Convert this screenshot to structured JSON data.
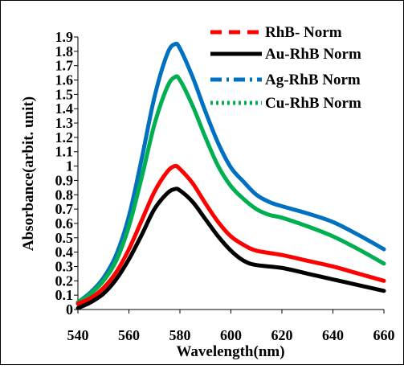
{
  "chart_data": {
    "type": "line",
    "title": "",
    "xlabel": "Wavelength(nm)",
    "ylabel": "Absorbance(arbit. unit)",
    "xlim": [
      540,
      660
    ],
    "ylim": [
      0,
      1.9
    ],
    "xticks": [
      "540",
      "560",
      "580",
      "600",
      "620",
      "640",
      "660"
    ],
    "yticks": [
      "0",
      "0.1",
      "0.2",
      "0.3",
      "0.4",
      "0.5",
      "0.6",
      "0.7",
      "0.8",
      "0.9",
      "1",
      "1.1",
      "1.2",
      "1.3",
      "1.4",
      "1.5",
      "1.6",
      "1.7",
      "1.8",
      "1.9"
    ],
    "grid": false,
    "legend_position": "top-right",
    "series": [
      {
        "name": "RhB- Norm",
        "color": "#ff0000",
        "dash": "long-dash",
        "x": [
          540,
          545,
          550,
          555,
          560,
          565,
          570,
          575,
          578,
          580,
          585,
          590,
          595,
          600,
          605,
          610,
          620,
          630,
          640,
          650,
          660
        ],
        "y": [
          0.04,
          0.08,
          0.15,
          0.26,
          0.42,
          0.62,
          0.82,
          0.96,
          1.0,
          0.98,
          0.88,
          0.74,
          0.61,
          0.51,
          0.45,
          0.41,
          0.38,
          0.34,
          0.3,
          0.25,
          0.2
        ]
      },
      {
        "name": "Au-RhB Norm",
        "color": "#000000",
        "dash": "solid",
        "x": [
          540,
          545,
          550,
          555,
          560,
          565,
          570,
          575,
          578,
          580,
          585,
          590,
          595,
          600,
          605,
          610,
          620,
          630,
          640,
          650,
          660
        ],
        "y": [
          0.01,
          0.05,
          0.11,
          0.21,
          0.35,
          0.52,
          0.7,
          0.81,
          0.84,
          0.83,
          0.75,
          0.63,
          0.51,
          0.41,
          0.34,
          0.31,
          0.29,
          0.25,
          0.21,
          0.17,
          0.13
        ]
      },
      {
        "name": "Ag-RhB Norm",
        "color": "#0070c0",
        "dash": "dash-dot",
        "x": [
          540,
          545,
          550,
          555,
          560,
          565,
          570,
          575,
          578,
          580,
          585,
          590,
          595,
          600,
          605,
          610,
          615,
          620,
          630,
          640,
          650,
          660
        ],
        "y": [
          0.05,
          0.12,
          0.22,
          0.38,
          0.65,
          1.05,
          1.48,
          1.78,
          1.85,
          1.82,
          1.62,
          1.38,
          1.16,
          0.99,
          0.89,
          0.8,
          0.75,
          0.72,
          0.67,
          0.61,
          0.52,
          0.42
        ]
      },
      {
        "name": "Cu-RhB Norm",
        "color": "#00b050",
        "dash": "dotted",
        "x": [
          540,
          545,
          550,
          555,
          560,
          565,
          570,
          575,
          578,
          580,
          585,
          590,
          595,
          600,
          605,
          610,
          615,
          620,
          630,
          640,
          650,
          660
        ],
        "y": [
          0.05,
          0.11,
          0.2,
          0.34,
          0.58,
          0.92,
          1.29,
          1.55,
          1.62,
          1.6,
          1.42,
          1.2,
          1.0,
          0.86,
          0.77,
          0.7,
          0.66,
          0.64,
          0.58,
          0.51,
          0.42,
          0.32
        ]
      }
    ]
  }
}
